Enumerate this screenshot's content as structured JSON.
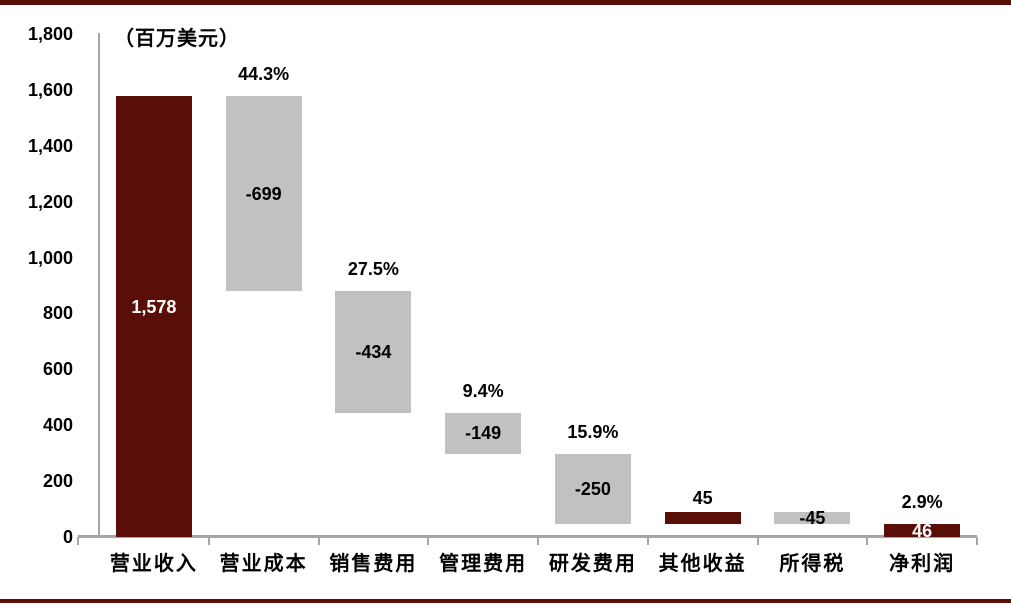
{
  "frame": {
    "top_rule_color": "#5a0e08",
    "bottom_rule_color": "#5a0e08",
    "background": "#ffffff"
  },
  "colors": {
    "maroon": "#5a0e08",
    "gray_bar": "#c1c1c1",
    "axis_gray": "#a6a6a6",
    "text": "#000000",
    "inverse_text": "#ffffff"
  },
  "chart_data": {
    "type": "bar",
    "subtype": "waterfall",
    "unit_label": "（百万美元）",
    "grid": false,
    "legend": false,
    "categories": [
      "营业收入",
      "营业成本",
      "销售费用",
      "管理费用",
      "研发费用",
      "其他收益",
      "所得税",
      "净利润"
    ],
    "series": [
      {
        "name": "waterfall-values",
        "values": [
          1578,
          -699,
          -434,
          -149,
          -250,
          45,
          -45,
          46
        ]
      }
    ],
    "y_axis": {
      "min": 0,
      "max": 1800,
      "step": 200,
      "tick_labels": [
        "1,800",
        "1,600",
        "1,400",
        "1,200",
        "1,000",
        "800",
        "600",
        "400",
        "200",
        "0"
      ]
    },
    "bars": [
      {
        "category": "营业收入",
        "value": 1578,
        "start": 0,
        "end": 1578,
        "color": "#5a0e08",
        "display": "1,578",
        "display_position": "inside-center",
        "display_color": "#ffffff",
        "display_dy": -10,
        "pct_label": null
      },
      {
        "category": "营业成本",
        "value": -699,
        "start": 1578,
        "end": 879,
        "color": "#c1c1c1",
        "display": "-699",
        "display_position": "inside-center",
        "display_color": "#000000",
        "display_dy": 0,
        "pct_label": "44.3%"
      },
      {
        "category": "销售费用",
        "value": -434,
        "start": 879,
        "end": 445,
        "color": "#c1c1c1",
        "display": "-434",
        "display_position": "inside-center",
        "display_color": "#000000",
        "display_dy": 0,
        "pct_label": "27.5%"
      },
      {
        "category": "管理费用",
        "value": -149,
        "start": 445,
        "end": 296,
        "color": "#c1c1c1",
        "display": "-149",
        "display_position": "inside-center",
        "display_color": "#000000",
        "display_dy": 0,
        "pct_label": "9.4%"
      },
      {
        "category": "研发费用",
        "value": -250,
        "start": 296,
        "end": 46,
        "color": "#c1c1c1",
        "display": "-250",
        "display_position": "inside-center",
        "display_color": "#000000",
        "display_dy": 0,
        "pct_label": "15.9%"
      },
      {
        "category": "其他收益",
        "value": 45,
        "start": 46,
        "end": 91,
        "color": "#5a0e08",
        "display": "45",
        "display_position": "above",
        "display_color": "#000000",
        "display_dy": 0,
        "pct_label": null
      },
      {
        "category": "所得税",
        "value": -45,
        "start": 91,
        "end": 46,
        "color": "#c1c1c1",
        "display": "-45",
        "display_position": "inside-center",
        "display_color": "#000000",
        "display_dy": 0,
        "pct_label": null
      },
      {
        "category": "净利润",
        "value": 46,
        "start": 0,
        "end": 46,
        "color": "#5a0e08",
        "display": "46",
        "display_position": "inside-center",
        "display_color": "#ffffff",
        "display_dy": 0,
        "pct_label": "2.9%"
      }
    ]
  }
}
